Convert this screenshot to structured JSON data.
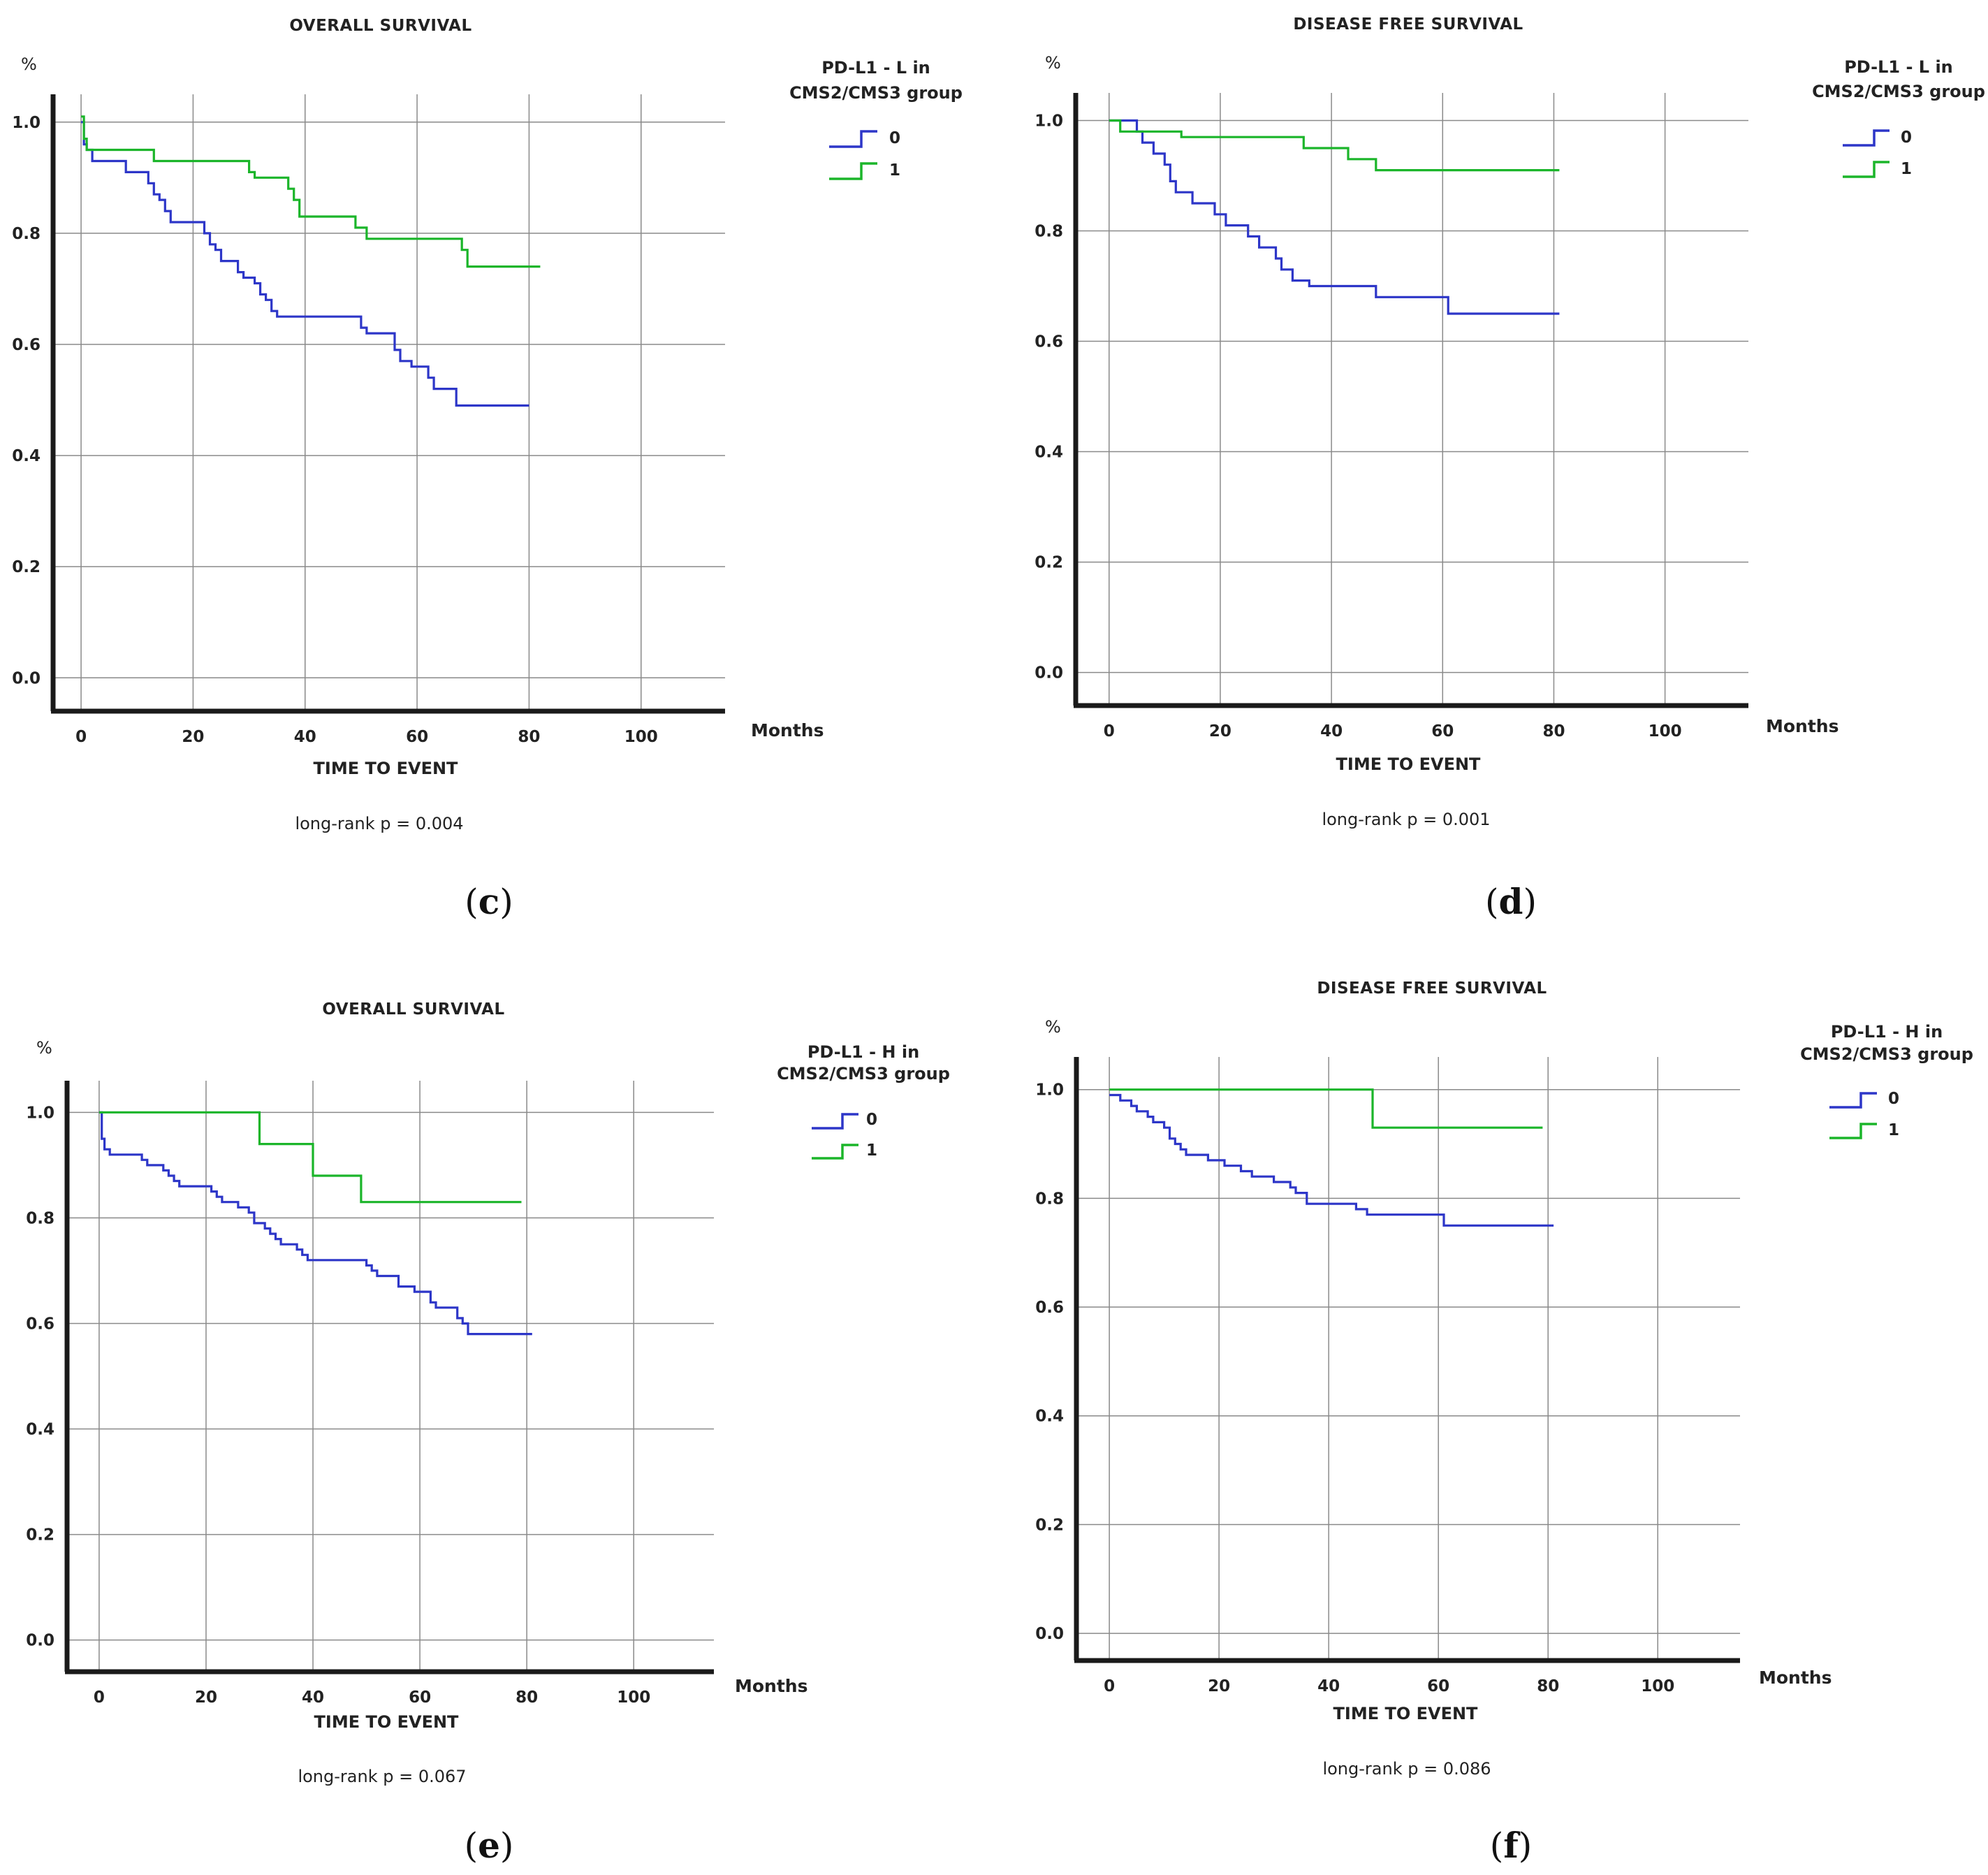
{
  "colors": {
    "group0": "#2d36c8",
    "group1": "#1bb52a",
    "grid": "#8a8a8a",
    "axis": "#1a1a1a"
  },
  "chart_data": [
    {
      "panel_label": "c",
      "type": "line",
      "title": "OVERALL SURVIVAL",
      "ylabel": "%",
      "xlabel": "TIME TO EVENT",
      "x_units": "Months",
      "xlim": [
        -5,
        115
      ],
      "ylim": [
        -0.06,
        1.05
      ],
      "x_ticks": [
        "0",
        "20",
        "40",
        "60",
        "80",
        "100"
      ],
      "y_ticks": [
        "1.0",
        "0.8",
        "0.6",
        "0.4",
        "0.2",
        "0.0"
      ],
      "legend_title": [
        "PD-L1 - L in",
        "CMS2/CMS3 group"
      ],
      "annotation": "long-rank p = 0.004",
      "series": [
        {
          "name": "0",
          "color_key": "group0",
          "steps": [
            [
              0,
              1.0
            ],
            [
              0.5,
              0.96
            ],
            [
              1,
              0.95
            ],
            [
              2,
              0.93
            ],
            [
              8,
              0.91
            ],
            [
              12,
              0.89
            ],
            [
              13,
              0.87
            ],
            [
              14,
              0.86
            ],
            [
              15,
              0.84
            ],
            [
              16,
              0.82
            ],
            [
              22,
              0.8
            ],
            [
              23,
              0.78
            ],
            [
              24,
              0.77
            ],
            [
              25,
              0.75
            ],
            [
              28,
              0.73
            ],
            [
              29,
              0.72
            ],
            [
              31,
              0.71
            ],
            [
              32,
              0.69
            ],
            [
              33,
              0.68
            ],
            [
              34,
              0.66
            ],
            [
              35,
              0.65
            ],
            [
              50,
              0.63
            ],
            [
              51,
              0.62
            ],
            [
              56,
              0.59
            ],
            [
              57,
              0.57
            ],
            [
              59,
              0.56
            ],
            [
              62,
              0.54
            ],
            [
              63,
              0.52
            ],
            [
              67,
              0.49
            ],
            [
              80,
              0.49
            ]
          ]
        },
        {
          "name": "1",
          "color_key": "group1",
          "steps": [
            [
              0,
              1.01
            ],
            [
              0.5,
              0.97
            ],
            [
              1,
              0.95
            ],
            [
              13,
              0.93
            ],
            [
              30,
              0.91
            ],
            [
              31,
              0.9
            ],
            [
              37,
              0.88
            ],
            [
              38,
              0.86
            ],
            [
              39,
              0.83
            ],
            [
              49,
              0.81
            ],
            [
              51,
              0.79
            ],
            [
              68,
              0.77
            ],
            [
              69,
              0.74
            ],
            [
              82,
              0.74
            ]
          ]
        }
      ]
    },
    {
      "panel_label": "d",
      "type": "line",
      "title": "DISEASE FREE SURVIVAL",
      "ylabel": "%",
      "xlabel": "TIME TO EVENT",
      "x_units": "Months",
      "xlim": [
        -6,
        115
      ],
      "ylim": [
        -0.06,
        1.05
      ],
      "x_ticks": [
        "0",
        "20",
        "40",
        "60",
        "80",
        "100"
      ],
      "y_ticks": [
        "1.0",
        "0.8",
        "0.6",
        "0.4",
        "0.2",
        "0.0"
      ],
      "legend_title": [
        "PD-L1 - L in",
        "CMS2/CMS3 group"
      ],
      "annotation": "long-rank p = 0.001",
      "series": [
        {
          "name": "0",
          "color_key": "group0",
          "steps": [
            [
              0,
              1.0
            ],
            [
              5,
              0.98
            ],
            [
              6,
              0.96
            ],
            [
              8,
              0.94
            ],
            [
              10,
              0.92
            ],
            [
              11,
              0.89
            ],
            [
              12,
              0.87
            ],
            [
              15,
              0.85
            ],
            [
              19,
              0.83
            ],
            [
              21,
              0.81
            ],
            [
              25,
              0.79
            ],
            [
              27,
              0.77
            ],
            [
              30,
              0.75
            ],
            [
              31,
              0.73
            ],
            [
              33,
              0.71
            ],
            [
              36,
              0.7
            ],
            [
              48,
              0.68
            ],
            [
              61,
              0.65
            ],
            [
              81,
              0.65
            ]
          ]
        },
        {
          "name": "1",
          "color_key": "group1",
          "steps": [
            [
              0,
              1.0
            ],
            [
              2,
              0.98
            ],
            [
              13,
              0.97
            ],
            [
              35,
              0.95
            ],
            [
              43,
              0.93
            ],
            [
              48,
              0.91
            ],
            [
              81,
              0.91
            ]
          ]
        }
      ]
    },
    {
      "panel_label": "e",
      "type": "line",
      "title": "OVERALL SURVIVAL",
      "ylabel": "%",
      "xlabel": "TIME TO EVENT",
      "x_units": "Months",
      "xlim": [
        -6,
        115
      ],
      "ylim": [
        -0.06,
        1.06
      ],
      "x_ticks": [
        "0",
        "20",
        "40",
        "60",
        "80",
        "100"
      ],
      "y_ticks": [
        "1.0",
        "0.8",
        "0.6",
        "0.4",
        "0.2",
        "0.0"
      ],
      "legend_title": [
        "PD-L1 - H in",
        "CMS2/CMS3 group"
      ],
      "annotation": "long-rank p = 0.067",
      "series": [
        {
          "name": "0",
          "color_key": "group0",
          "steps": [
            [
              0,
              1.0
            ],
            [
              0.5,
              0.95
            ],
            [
              1,
              0.93
            ],
            [
              2,
              0.92
            ],
            [
              8,
              0.91
            ],
            [
              9,
              0.9
            ],
            [
              12,
              0.89
            ],
            [
              13,
              0.88
            ],
            [
              14,
              0.87
            ],
            [
              15,
              0.86
            ],
            [
              21,
              0.85
            ],
            [
              22,
              0.84
            ],
            [
              23,
              0.83
            ],
            [
              26,
              0.82
            ],
            [
              28,
              0.81
            ],
            [
              29,
              0.79
            ],
            [
              31,
              0.78
            ],
            [
              32,
              0.77
            ],
            [
              33,
              0.76
            ],
            [
              34,
              0.75
            ],
            [
              37,
              0.74
            ],
            [
              38,
              0.73
            ],
            [
              39,
              0.72
            ],
            [
              50,
              0.71
            ],
            [
              51,
              0.7
            ],
            [
              52,
              0.69
            ],
            [
              56,
              0.67
            ],
            [
              59,
              0.66
            ],
            [
              62,
              0.64
            ],
            [
              63,
              0.63
            ],
            [
              67,
              0.61
            ],
            [
              68,
              0.6
            ],
            [
              69,
              0.58
            ],
            [
              81,
              0.58
            ]
          ]
        },
        {
          "name": "1",
          "color_key": "group1",
          "steps": [
            [
              0,
              1.0
            ],
            [
              30,
              0.94
            ],
            [
              40,
              0.88
            ],
            [
              49,
              0.83
            ],
            [
              79,
              0.83
            ]
          ]
        }
      ]
    },
    {
      "panel_label": "f",
      "type": "line",
      "title": "DISEASE FREE SURVIVAL",
      "ylabel": "%",
      "xlabel": "TIME TO EVENT",
      "x_units": "Months",
      "xlim": [
        -6,
        115
      ],
      "ylim": [
        -0.05,
        1.06
      ],
      "x_ticks": [
        "0",
        "20",
        "40",
        "60",
        "80",
        "100"
      ],
      "y_ticks": [
        "1.0",
        "0.8",
        "0.6",
        "0.4",
        "0.2",
        "0.0"
      ],
      "legend_title": [
        "PD-L1 - H in",
        "CMS2/CMS3 group"
      ],
      "annotation": "long-rank p = 0.086",
      "series": [
        {
          "name": "0",
          "color_key": "group0",
          "steps": [
            [
              0,
              0.99
            ],
            [
              2,
              0.98
            ],
            [
              4,
              0.97
            ],
            [
              5,
              0.96
            ],
            [
              7,
              0.95
            ],
            [
              8,
              0.94
            ],
            [
              10,
              0.93
            ],
            [
              11,
              0.91
            ],
            [
              12,
              0.9
            ],
            [
              13,
              0.89
            ],
            [
              14,
              0.88
            ],
            [
              18,
              0.87
            ],
            [
              21,
              0.86
            ],
            [
              24,
              0.85
            ],
            [
              26,
              0.84
            ],
            [
              30,
              0.83
            ],
            [
              33,
              0.82
            ],
            [
              34,
              0.81
            ],
            [
              36,
              0.79
            ],
            [
              45,
              0.78
            ],
            [
              47,
              0.77
            ],
            [
              61,
              0.75
            ],
            [
              81,
              0.75
            ]
          ]
        },
        {
          "name": "1",
          "color_key": "group1",
          "steps": [
            [
              0,
              1.0
            ],
            [
              48,
              0.93
            ],
            [
              79,
              0.93
            ]
          ]
        }
      ]
    }
  ]
}
